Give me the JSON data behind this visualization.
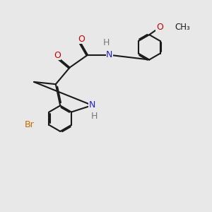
{
  "bg_color": "#e8e8e8",
  "bond_color": "#1a1a1a",
  "bond_width": 1.5,
  "dbo": 0.055,
  "atom_colors": {
    "Br": "#cc6600",
    "O": "#cc0000",
    "N": "#2222cc",
    "H": "#777777",
    "C": "#1a1a1a"
  },
  "font_size": 9.0
}
